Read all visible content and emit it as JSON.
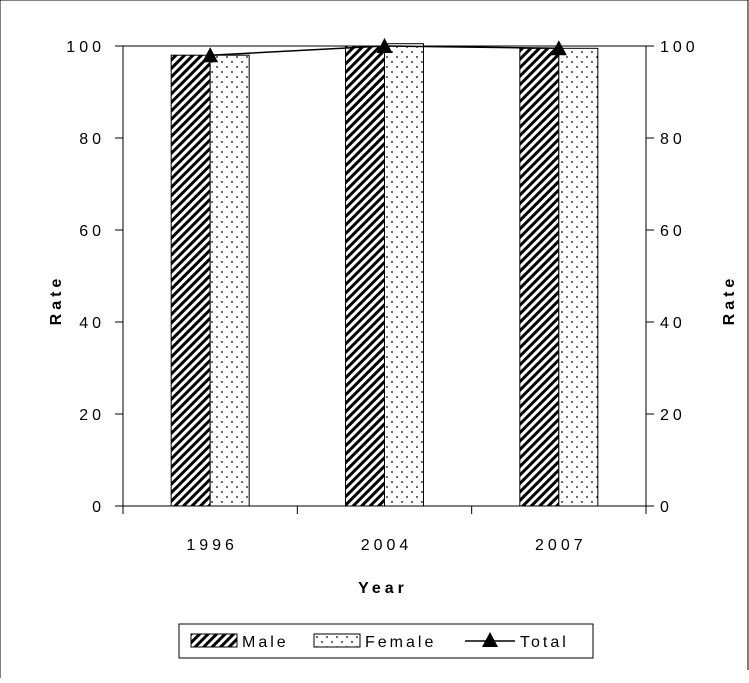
{
  "chart_data": {
    "type": "bar",
    "categories": [
      "1996",
      "2004",
      "2007"
    ],
    "series": [
      {
        "name": "Male",
        "kind": "bar",
        "pattern": "diagonal-hatch",
        "values": [
          98,
          100,
          99.5
        ]
      },
      {
        "name": "Female",
        "kind": "bar",
        "pattern": "dots",
        "values": [
          98,
          100.5,
          99.5
        ]
      },
      {
        "name": "Total",
        "kind": "line",
        "marker": "triangle",
        "values": [
          98,
          100,
          99.5
        ]
      }
    ],
    "xlabel": "Year",
    "ylabel_left": "Rate",
    "ylabel_right": "Rate",
    "ylim": [
      0,
      100
    ],
    "yticks": [
      "0",
      "20",
      "40",
      "60",
      "80",
      "100"
    ],
    "grid": false,
    "legend": {
      "position": "bottom-center"
    }
  }
}
